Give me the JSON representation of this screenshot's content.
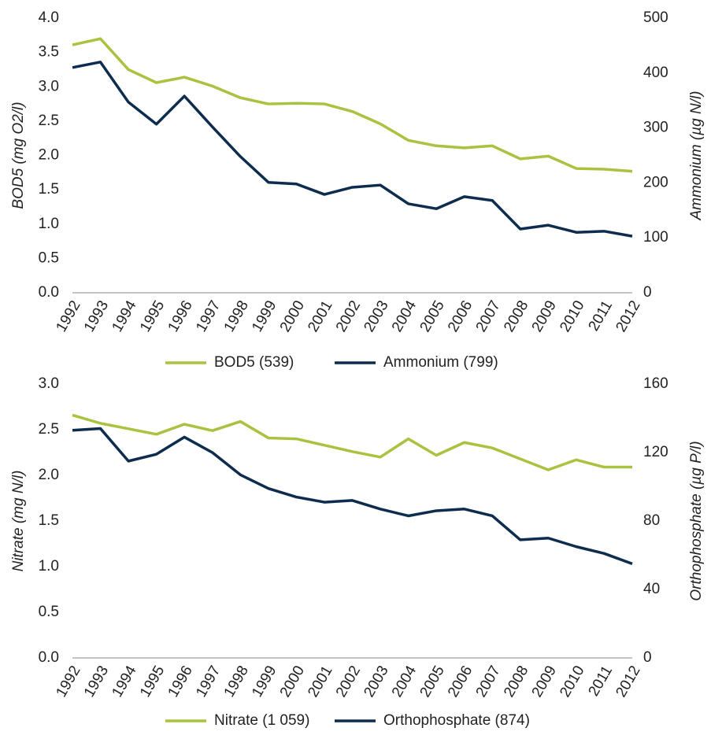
{
  "chart_data": [
    {
      "type": "line",
      "categories": [
        "1992",
        "1993",
        "1994",
        "1995",
        "1996",
        "1997",
        "1998",
        "1999",
        "2000",
        "2001",
        "2002",
        "2003",
        "2004",
        "2005",
        "2006",
        "2007",
        "2008",
        "2009",
        "2010",
        "2011",
        "2012"
      ],
      "y_label": "BOD5 (mg O2/l)",
      "y2_label": "Ammonium (µg N/l)",
      "ylim": [
        0,
        4
      ],
      "yticks": [
        {
          "value": 0,
          "label": "0.0"
        },
        0.5,
        {
          "value": 1,
          "label": "1.0"
        },
        1.5,
        {
          "value": 2,
          "label": "2.0"
        },
        2.5,
        {
          "value": 3,
          "label": "3.0"
        },
        3.5,
        {
          "value": 4,
          "label": "4.0"
        }
      ],
      "y2lim": [
        0,
        500
      ],
      "y2ticks": [
        0,
        100,
        200,
        300,
        400,
        500
      ],
      "series": [
        {
          "name": "BOD5 (539)",
          "color": "#a9c23f",
          "values": [
            3.61,
            3.7,
            3.25,
            3.06,
            3.14,
            3.01,
            2.84,
            2.75,
            2.76,
            2.75,
            2.64,
            2.46,
            2.22,
            2.14,
            2.11,
            2.14,
            1.95,
            1.99,
            1.81,
            1.8,
            1.77
          ]
        },
        {
          "name": "Ammonium (799)",
          "color": "#0d2c4e",
          "axis": "y2",
          "values": [
            410,
            420,
            347,
            307,
            358,
            302,
            248,
            201,
            198,
            179,
            192,
            196,
            162,
            153,
            175,
            168,
            116,
            123,
            110,
            112,
            103
          ]
        }
      ]
    },
    {
      "type": "line",
      "categories": [
        "1992",
        "1993",
        "1994",
        "1995",
        "1996",
        "1997",
        "1998",
        "1999",
        "2000",
        "2001",
        "2002",
        "2003",
        "2004",
        "2005",
        "2006",
        "2007",
        "2008",
        "2009",
        "2010",
        "2011",
        "2012"
      ],
      "y_label": "Nitrate (mg N/l)",
      "y2_label": "Orthophosphate (µg P/l)",
      "ylim": [
        0,
        3
      ],
      "yticks": [
        {
          "value": 0,
          "label": "0.0"
        },
        0.5,
        {
          "value": 1,
          "label": "1.0"
        },
        1.5,
        {
          "value": 2,
          "label": "2.0"
        },
        2.5,
        {
          "value": 3,
          "label": "3.0"
        }
      ],
      "y2lim": [
        0,
        160
      ],
      "y2ticks": [
        0,
        40,
        80,
        120,
        160
      ],
      "series": [
        {
          "name": "Nitrate (1 059)",
          "color": "#a9c23f",
          "values": [
            2.66,
            2.57,
            2.51,
            2.45,
            2.56,
            2.49,
            2.59,
            2.41,
            2.4,
            2.33,
            2.26,
            2.2,
            2.4,
            2.22,
            2.36,
            2.3,
            2.18,
            2.06,
            2.17,
            2.09,
            2.09
          ]
        },
        {
          "name": "Orthophosphate (874)",
          "color": "#0d2c4e",
          "axis": "y2",
          "values": [
            133,
            134,
            115,
            119,
            129,
            120,
            107,
            99,
            94,
            91,
            92,
            87,
            83,
            86,
            87,
            83,
            69,
            70,
            65,
            61,
            55
          ]
        }
      ]
    }
  ]
}
